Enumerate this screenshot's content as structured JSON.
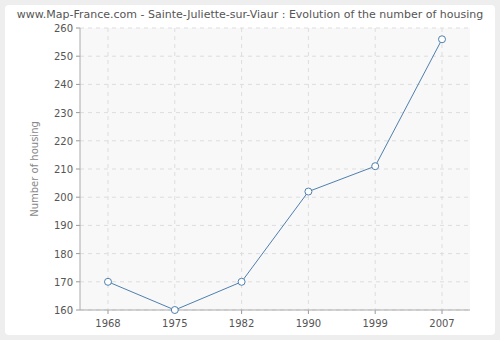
{
  "chart_data": {
    "type": "line",
    "title": "www.Map-France.com - Sainte-Juliette-sur-Viaur : Evolution of the number of housing",
    "y_label": "Number of housing",
    "categories": [
      "1968",
      "1975",
      "1982",
      "1990",
      "1999",
      "2007"
    ],
    "values": [
      170,
      160,
      170,
      202,
      211,
      256
    ],
    "color": "#4f7fae",
    "marker": "circle",
    "ylim": [
      160,
      260
    ],
    "yticks": [
      160,
      170,
      180,
      190,
      200,
      210,
      220,
      230,
      240,
      250,
      260
    ],
    "grid": true
  }
}
